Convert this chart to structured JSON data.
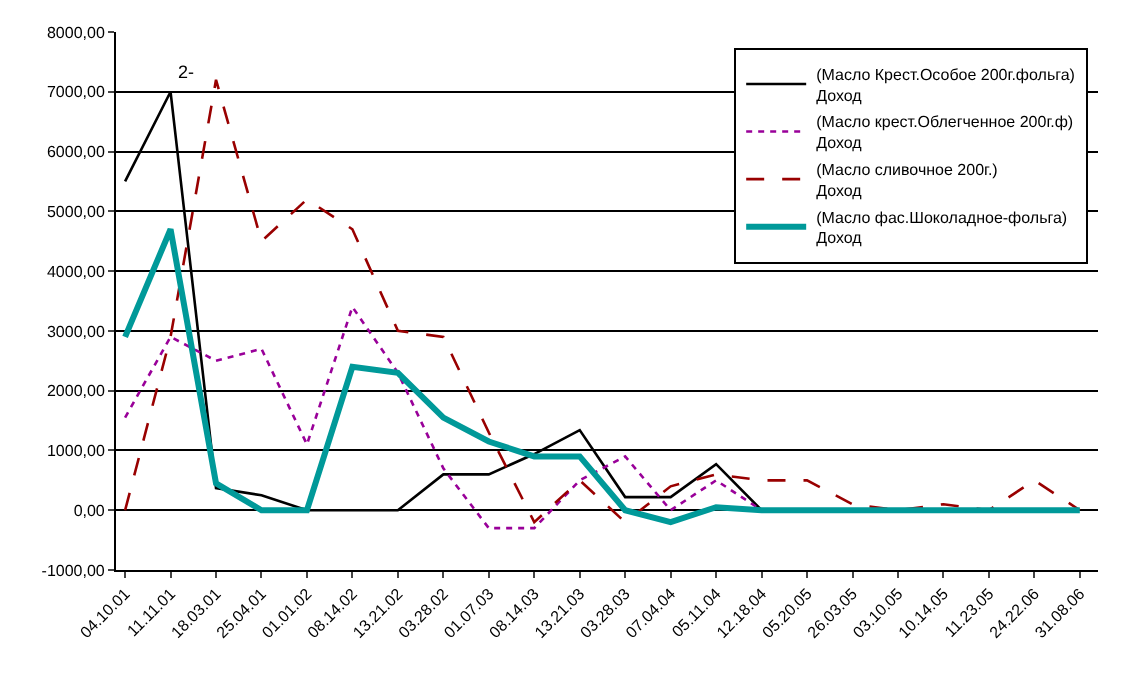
{
  "chart_data": {
    "type": "line",
    "categories": [
      "04.10.01",
      "11.11.01",
      "18.03.01",
      "25.04.01",
      "01.01.02",
      "08.14.02",
      "13.21.02",
      "03.28.02",
      "01.07.03",
      "08.14.03",
      "13.21.03",
      "03.28.03",
      "07.04.04",
      "05.11.04",
      "12.18.04",
      "05.20.05",
      "26.03.05",
      "03.10.05",
      "10.14.05",
      "11.23.05",
      "24.22.06",
      "31.08.06"
    ],
    "series": [
      {
        "name": "(Масло Крест.Особое 200г.фольга)\nДоход",
        "color": "#000000",
        "line_style": "solid",
        "values": [
          5500,
          7000,
          370,
          250,
          0,
          0,
          0,
          600,
          600,
          940,
          1340,
          220,
          220,
          770,
          0,
          null,
          null,
          null,
          null,
          null,
          null,
          null
        ]
      },
      {
        "name": "(Масло крест.Облегченное 200г.ф)\nДоход",
        "color": "#990099",
        "line_style": "dotted",
        "values": [
          1550,
          2900,
          2500,
          2700,
          1100,
          3400,
          2300,
          700,
          -300,
          -300,
          500,
          900,
          0,
          500,
          0,
          null,
          null,
          null,
          null,
          null,
          null,
          null
        ]
      },
      {
        "name": "(Масло сливочное 200г.)\nДоход",
        "color": "#990000",
        "line_style": "dashed",
        "values": [
          0,
          2900,
          7200,
          4500,
          5200,
          4700,
          3000,
          2900,
          1300,
          -200,
          500,
          -200,
          400,
          600,
          500,
          500,
          100,
          0,
          100,
          0,
          500,
          0
        ]
      },
      {
        "name": "(Масло фас.Шоколадное-фольга)\nДоход",
        "color": "#009999",
        "line_style": "solid",
        "values": [
          2900,
          4700,
          450,
          0,
          0,
          2400,
          2300,
          1550,
          1150,
          900,
          900,
          0,
          -200,
          50,
          0,
          0,
          0,
          0,
          0,
          0,
          0,
          0
        ]
      }
    ],
    "annotations": [
      "2-"
    ],
    "ylim": [
      -1000,
      8000
    ],
    "yticks": [
      {
        "value": -1000,
        "label": "-1000,00"
      },
      {
        "value": 0,
        "label": "0,00"
      },
      {
        "value": 1000,
        "label": "1000,00"
      },
      {
        "value": 2000,
        "label": "2000,00"
      },
      {
        "value": 3000,
        "label": "3000,00"
      },
      {
        "value": 4000,
        "label": "4000,00"
      },
      {
        "value": 5000,
        "label": "5000,00"
      },
      {
        "value": 6000,
        "label": "6000,00"
      },
      {
        "value": 7000,
        "label": "7000,00"
      },
      {
        "value": 8000,
        "label": "8000,00"
      }
    ],
    "grid": "y",
    "legend": "top right",
    "marker": "none"
  }
}
